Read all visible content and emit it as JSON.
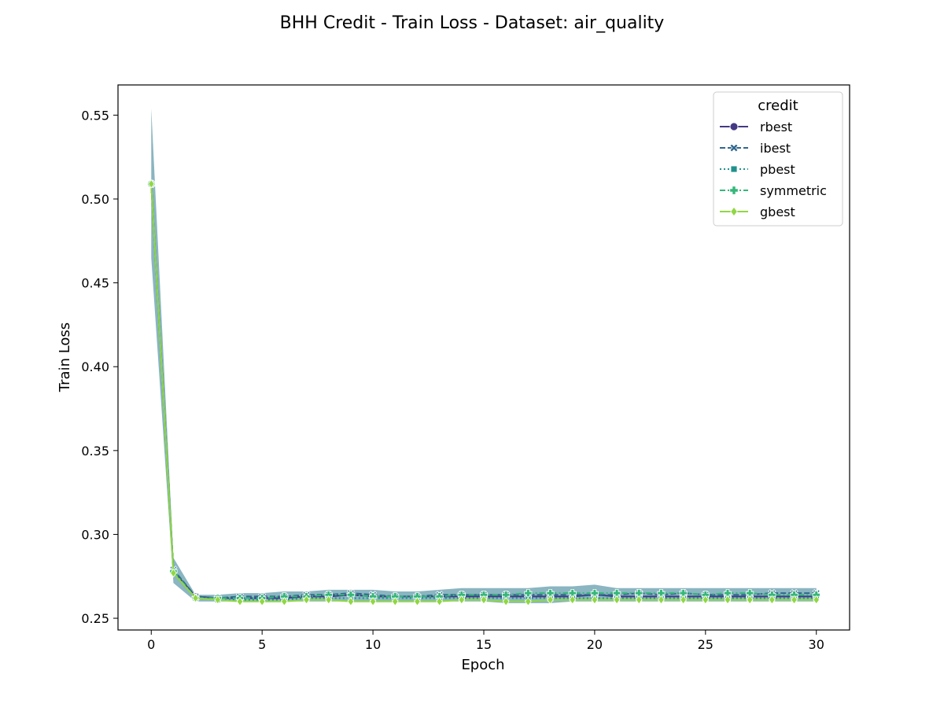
{
  "chart_data": {
    "type": "line",
    "title": "BHH Credit - Train Loss - Dataset: air_quality",
    "xlabel": "Epoch",
    "ylabel": "Train Loss",
    "xlim": [
      -1.5,
      31.5
    ],
    "ylim": [
      0.243,
      0.568
    ],
    "xticks": [
      0,
      5,
      10,
      15,
      20,
      25,
      30
    ],
    "yticks": [
      0.25,
      0.3,
      0.35,
      0.4,
      0.45,
      0.5,
      0.55
    ],
    "ytick_labels": [
      "0.25",
      "0.30",
      "0.35",
      "0.40",
      "0.45",
      "0.50",
      "0.55"
    ],
    "grid": false,
    "legend": {
      "title": "credit",
      "placement": "upper right"
    },
    "x": [
      0,
      1,
      2,
      3,
      4,
      5,
      6,
      7,
      8,
      9,
      10,
      11,
      12,
      13,
      14,
      15,
      16,
      17,
      18,
      19,
      20,
      21,
      22,
      23,
      24,
      25,
      26,
      27,
      28,
      29,
      30
    ],
    "band": {
      "lower": [
        0.465,
        0.271,
        0.26,
        0.26,
        0.26,
        0.26,
        0.26,
        0.26,
        0.26,
        0.26,
        0.26,
        0.26,
        0.26,
        0.26,
        0.26,
        0.26,
        0.259,
        0.259,
        0.259,
        0.26,
        0.26,
        0.26,
        0.26,
        0.26,
        0.26,
        0.26,
        0.26,
        0.26,
        0.26,
        0.26,
        0.26
      ],
      "upper": [
        0.554,
        0.286,
        0.264,
        0.264,
        0.265,
        0.265,
        0.266,
        0.266,
        0.267,
        0.267,
        0.267,
        0.266,
        0.266,
        0.267,
        0.268,
        0.268,
        0.268,
        0.268,
        0.269,
        0.269,
        0.27,
        0.268,
        0.268,
        0.268,
        0.268,
        0.268,
        0.268,
        0.268,
        0.268,
        0.268,
        0.268
      ]
    },
    "series": [
      {
        "name": "rbest",
        "color": "#443983",
        "dash": "solid",
        "marker": "circle",
        "values": [
          0.509,
          0.278,
          0.263,
          0.262,
          0.262,
          0.262,
          0.262,
          0.263,
          0.263,
          0.264,
          0.263,
          0.263,
          0.263,
          0.263,
          0.263,
          0.263,
          0.263,
          0.263,
          0.263,
          0.263,
          0.264,
          0.263,
          0.263,
          0.263,
          0.263,
          0.263,
          0.263,
          0.263,
          0.263,
          0.263,
          0.263
        ]
      },
      {
        "name": "ibest",
        "color": "#31688e",
        "dash": "dashed",
        "marker": "x",
        "values": [
          0.509,
          0.279,
          0.263,
          0.262,
          0.263,
          0.263,
          0.263,
          0.264,
          0.264,
          0.265,
          0.264,
          0.263,
          0.263,
          0.264,
          0.264,
          0.264,
          0.264,
          0.264,
          0.264,
          0.264,
          0.264,
          0.264,
          0.265,
          0.264,
          0.265,
          0.264,
          0.264,
          0.264,
          0.265,
          0.265,
          0.265
        ]
      },
      {
        "name": "pbest",
        "color": "#21918c",
        "dash": "dotted",
        "marker": "square",
        "values": [
          0.509,
          0.278,
          0.262,
          0.261,
          0.261,
          0.261,
          0.261,
          0.262,
          0.262,
          0.262,
          0.262,
          0.262,
          0.262,
          0.262,
          0.262,
          0.262,
          0.262,
          0.262,
          0.262,
          0.262,
          0.262,
          0.262,
          0.262,
          0.262,
          0.262,
          0.262,
          0.262,
          0.262,
          0.262,
          0.262,
          0.262
        ]
      },
      {
        "name": "symmetric",
        "color": "#35b779",
        "dash": "dashdot",
        "marker": "plus",
        "values": [
          0.509,
          0.278,
          0.262,
          0.262,
          0.262,
          0.262,
          0.263,
          0.263,
          0.264,
          0.264,
          0.263,
          0.263,
          0.263,
          0.263,
          0.264,
          0.264,
          0.264,
          0.265,
          0.265,
          0.265,
          0.265,
          0.265,
          0.265,
          0.265,
          0.265,
          0.264,
          0.265,
          0.265,
          0.264,
          0.264,
          0.264
        ]
      },
      {
        "name": "gbest",
        "color": "#90d743",
        "dash": "solid",
        "marker": "diamond",
        "values": [
          0.509,
          0.277,
          0.262,
          0.261,
          0.26,
          0.26,
          0.26,
          0.261,
          0.261,
          0.26,
          0.26,
          0.26,
          0.26,
          0.26,
          0.261,
          0.261,
          0.26,
          0.26,
          0.261,
          0.261,
          0.261,
          0.261,
          0.261,
          0.261,
          0.261,
          0.261,
          0.261,
          0.261,
          0.261,
          0.261,
          0.261
        ]
      }
    ]
  }
}
